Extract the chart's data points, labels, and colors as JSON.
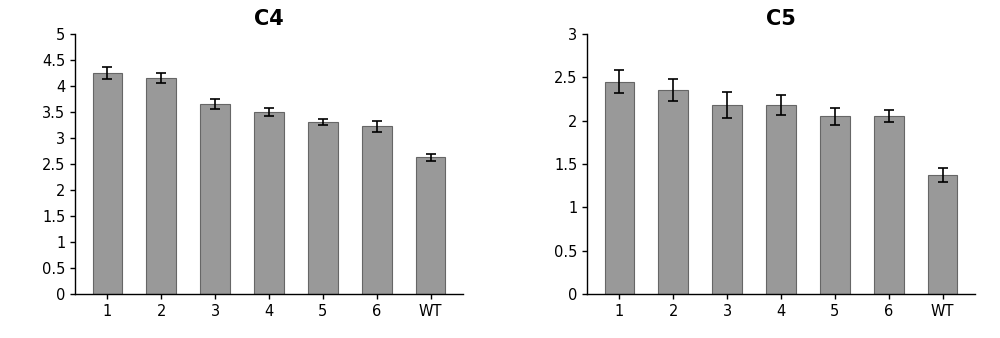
{
  "C4": {
    "title": "C4",
    "categories": [
      "1",
      "2",
      "3",
      "4",
      "5",
      "6",
      "WT"
    ],
    "values": [
      4.25,
      4.15,
      3.65,
      3.5,
      3.3,
      3.22,
      2.63
    ],
    "errors": [
      0.12,
      0.1,
      0.1,
      0.07,
      0.06,
      0.1,
      0.07
    ],
    "ylim": [
      0,
      5
    ],
    "yticks": [
      0,
      0.5,
      1,
      1.5,
      2,
      2.5,
      3,
      3.5,
      4,
      4.5,
      5
    ]
  },
  "C5": {
    "title": "C5",
    "categories": [
      "1",
      "2",
      "3",
      "4",
      "5",
      "6",
      "WT"
    ],
    "values": [
      2.45,
      2.35,
      2.18,
      2.18,
      2.05,
      2.05,
      1.37
    ],
    "errors": [
      0.13,
      0.13,
      0.15,
      0.12,
      0.1,
      0.07,
      0.08
    ],
    "ylim": [
      0,
      3
    ],
    "yticks": [
      0,
      0.5,
      1,
      1.5,
      2,
      2.5,
      3
    ]
  },
  "bar_color": "#999999",
  "bar_edgecolor": "#666666",
  "error_color": "black",
  "title_fontsize": 15,
  "tick_fontsize": 10.5,
  "bar_width": 0.55,
  "background_color": "#ffffff",
  "font_family": "DejaVu Sans"
}
